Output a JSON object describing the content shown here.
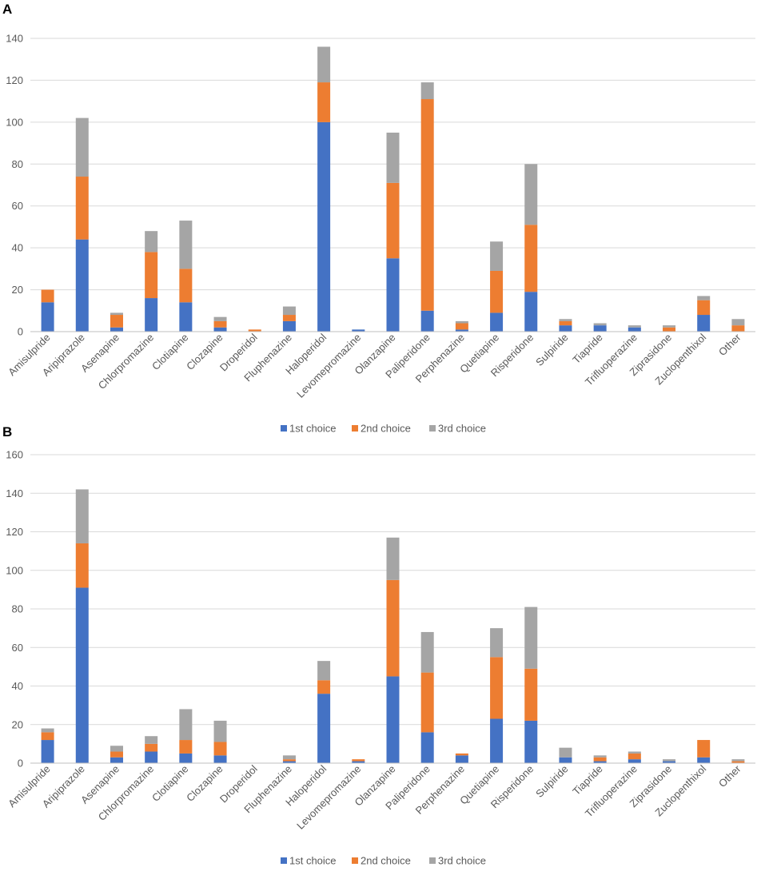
{
  "chart_data": [
    {
      "panel": "A",
      "type": "bar",
      "stacked": true,
      "categories": [
        "Amisulpride",
        "Aripiprazole",
        "Asenapine",
        "Chlorpromazine",
        "Clotiapine",
        "Clozapine",
        "Droperidol",
        "Fluphenazine",
        "Haloperidol",
        "Levomepromazine",
        "Olanzapine",
        "Paliperidone",
        "Perphenazine",
        "Quetiapine",
        "Risperidone",
        "Sulpiride",
        "Tiapride",
        "Trifluoperazine",
        "Ziprasidone",
        "Zuclopenthixol",
        "Other"
      ],
      "series": [
        {
          "name": "1st choice",
          "color": "#4472c4",
          "values": [
            14,
            44,
            2,
            16,
            14,
            2,
            0,
            5,
            100,
            1,
            35,
            10,
            1,
            9,
            19,
            3,
            3,
            2,
            0,
            8,
            0
          ]
        },
        {
          "name": "2nd choice",
          "color": "#ed7d31",
          "values": [
            6,
            30,
            6,
            22,
            16,
            3,
            1,
            3,
            19,
            0,
            36,
            101,
            3,
            20,
            32,
            2,
            0,
            0,
            2,
            7,
            3
          ]
        },
        {
          "name": "3rd choice",
          "color": "#a5a5a5",
          "values": [
            0,
            28,
            1,
            10,
            23,
            2,
            0,
            4,
            17,
            0,
            24,
            8,
            1,
            14,
            29,
            1,
            1,
            1,
            1,
            2,
            3
          ]
        }
      ],
      "ylim": [
        0,
        140
      ],
      "yticks": [
        0,
        20,
        40,
        60,
        80,
        100,
        120,
        140
      ],
      "legend": "bottom",
      "grid": true
    },
    {
      "panel": "B",
      "type": "bar",
      "stacked": true,
      "categories": [
        "Amisulpride",
        "Aripiprazole",
        "Asenapine",
        "Chlorpromazine",
        "Clotiapine",
        "Clozapine",
        "Droperidol",
        "Fluphenazine",
        "Haloperidol",
        "Levomepromazine",
        "Olanzapine",
        "Paliperidone",
        "Perphenazine",
        "Quetiapine",
        "Risperidone",
        "Sulpiride",
        "Tiapride",
        "Trifluoperazine",
        "Ziprasidone",
        "Zuclopenthixol",
        "Other"
      ],
      "series": [
        {
          "name": "1st choice",
          "color": "#4472c4",
          "values": [
            12,
            91,
            3,
            6,
            5,
            4,
            0,
            1,
            36,
            1,
            45,
            16,
            4,
            23,
            22,
            3,
            1,
            2,
            1,
            3,
            0
          ]
        },
        {
          "name": "2nd choice",
          "color": "#ed7d31",
          "values": [
            4,
            23,
            3,
            4,
            7,
            7,
            0,
            1,
            7,
            1,
            50,
            31,
            1,
            32,
            27,
            0,
            2,
            3,
            0,
            9,
            1
          ]
        },
        {
          "name": "3rd choice",
          "color": "#a5a5a5",
          "values": [
            2,
            28,
            3,
            4,
            16,
            11,
            0,
            2,
            10,
            0,
            22,
            21,
            0,
            15,
            32,
            5,
            1,
            1,
            1,
            0,
            1
          ]
        }
      ],
      "ylim": [
        0,
        160
      ],
      "yticks": [
        0,
        20,
        40,
        60,
        80,
        100,
        120,
        140,
        160
      ],
      "legend": "bottom",
      "grid": true
    }
  ]
}
